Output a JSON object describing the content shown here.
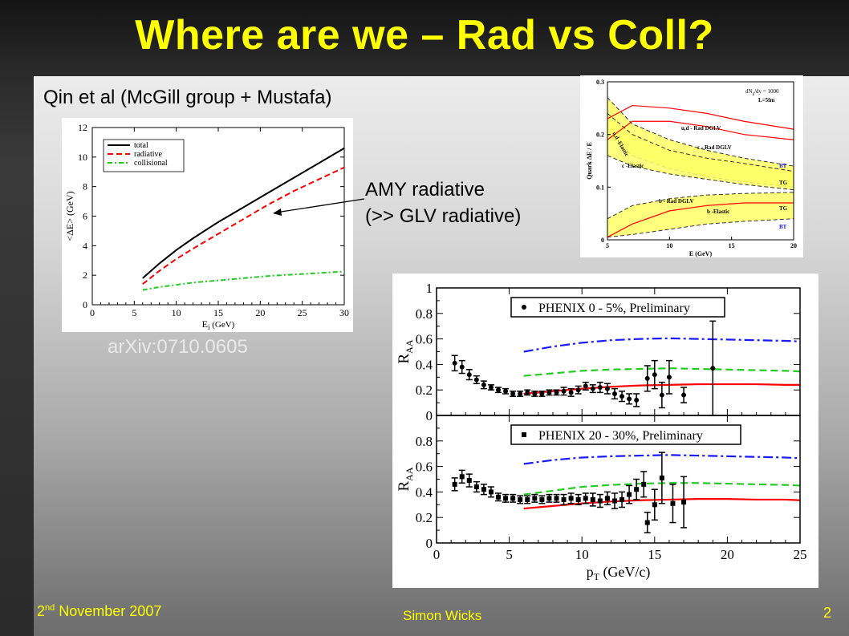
{
  "slide": {
    "title": "Where are we – Rad vs Coll?",
    "subtitle": "Qin et al (McGill group + Mustafa)",
    "reference": "arXiv:0710.0605",
    "annotation_line1": "AMY radiative",
    "annotation_line2": "(>> GLV radiative)",
    "footer_date": "2",
    "footer_date_sup": "nd",
    "footer_date_rest": " November 2007",
    "footer_author": "Simon Wicks",
    "page_number": "2"
  },
  "colors": {
    "title": "#ffff00",
    "footer": "#ffff00",
    "total": "#000000",
    "radiative": "#ff0000",
    "collisional": "#22cc22",
    "blue_curve": "#1a1aff",
    "band_fill": "#ffff66"
  },
  "chart_data": [
    {
      "type": "line",
      "xlabel": "E",
      "xlabel_sub": "i",
      "xlabel_unit": " (GeV)",
      "ylabel": "<ΔE> (GeV)",
      "xlim": [
        0,
        30
      ],
      "ylim": [
        0,
        12
      ],
      "xticks": [
        "0",
        "5",
        "10",
        "15",
        "20",
        "25",
        "30"
      ],
      "yticks": [
        "0",
        "2",
        "4",
        "6",
        "8",
        "10",
        "12"
      ],
      "legend": [
        "total",
        "radiative",
        "collisional"
      ],
      "series": [
        {
          "name": "total",
          "x": [
            6,
            8,
            10,
            12,
            15,
            18,
            21,
            24,
            27,
            30
          ],
          "y": [
            1.8,
            2.8,
            3.7,
            4.5,
            5.6,
            6.6,
            7.6,
            8.6,
            9.6,
            10.6
          ]
        },
        {
          "name": "radiative",
          "x": [
            6,
            8,
            10,
            12,
            15,
            18,
            21,
            24,
            27,
            30
          ],
          "y": [
            1.4,
            2.3,
            3.1,
            3.8,
            4.8,
            5.8,
            6.8,
            7.7,
            8.5,
            9.3
          ]
        },
        {
          "name": "collisional",
          "x": [
            6,
            8,
            10,
            12,
            15,
            18,
            21,
            24,
            27,
            30
          ],
          "y": [
            1.0,
            1.2,
            1.35,
            1.5,
            1.65,
            1.8,
            1.95,
            2.05,
            2.15,
            2.25
          ]
        }
      ]
    },
    {
      "type": "area",
      "ylabel": "Quark ΔE / E",
      "xlabel": "E (GeV)",
      "xlim": [
        5,
        20
      ],
      "ylim": [
        0,
        0.3
      ],
      "xticks": [
        "5",
        "10",
        "15",
        "20"
      ],
      "yticks": [
        "0",
        "0.1",
        "0.2",
        "0.3"
      ],
      "annotations": [
        "dN",
        "g",
        "/dy = 1000",
        "L=5fm",
        "u,d - Rad DGLV",
        "c - Rad DGLV",
        "u,d -Elastic",
        "c -Elastic",
        "b - Rad DGLV",
        "b -Elastic",
        "BT",
        "TG",
        "TG",
        "BT"
      ],
      "series": [
        {
          "name": "u,d - Rad DGLV",
          "x": [
            5,
            7,
            10,
            13,
            16,
            20
          ],
          "y": [
            0.23,
            0.255,
            0.25,
            0.24,
            0.225,
            0.21
          ]
        },
        {
          "name": "c - Rad DGLV",
          "x": [
            5,
            7,
            10,
            13,
            16,
            20
          ],
          "y": [
            0.19,
            0.225,
            0.225,
            0.215,
            0.2,
            0.19
          ]
        },
        {
          "name": "u,d band upper",
          "x": [
            5,
            7,
            10,
            13,
            16,
            20
          ],
          "y": [
            0.27,
            0.22,
            0.19,
            0.17,
            0.155,
            0.14
          ]
        },
        {
          "name": "u,d band lower",
          "x": [
            5,
            7,
            10,
            13,
            16,
            20
          ],
          "y": [
            0.2,
            0.16,
            0.135,
            0.12,
            0.11,
            0.1
          ]
        },
        {
          "name": "c band upper",
          "x": [
            5,
            7,
            10,
            13,
            16,
            20
          ],
          "y": [
            0.24,
            0.2,
            0.17,
            0.155,
            0.145,
            0.13
          ]
        },
        {
          "name": "c band lower",
          "x": [
            5,
            7,
            10,
            13,
            16,
            20
          ],
          "y": [
            0.16,
            0.14,
            0.125,
            0.115,
            0.105,
            0.095
          ]
        },
        {
          "name": "b - Rad DGLV",
          "x": [
            5,
            7,
            10,
            13,
            16,
            20
          ],
          "y": [
            0.005,
            0.03,
            0.055,
            0.065,
            0.07,
            0.07
          ]
        },
        {
          "name": "b band upper",
          "x": [
            5,
            7,
            10,
            13,
            16,
            20
          ],
          "y": [
            0.04,
            0.065,
            0.078,
            0.085,
            0.088,
            0.09
          ]
        },
        {
          "name": "b band lower",
          "x": [
            5,
            7,
            10,
            13,
            16,
            20
          ],
          "y": [
            0.005,
            0.01,
            0.02,
            0.03,
            0.035,
            0.04
          ]
        }
      ]
    },
    {
      "type": "scatter",
      "xlabel": "p",
      "xlabel_sub": "T",
      "xlabel_unit": " (GeV/c)",
      "ylabel": "R",
      "ylabel_sub": "AA",
      "xlim": [
        0,
        25
      ],
      "ylim": [
        0,
        1
      ],
      "xticks": [
        "0",
        "5",
        "10",
        "15",
        "20",
        "25"
      ],
      "top_yticks": [
        "0",
        "0.2",
        "0.4",
        "0.6",
        "0.8",
        "1"
      ],
      "bottom_yticks": [
        "0",
        "0.2",
        "0.4",
        "0.6",
        "0.8"
      ],
      "top_legend": "PHENIX 0 - 5%, Preliminary",
      "bottom_legend": "PHENIX 20 - 30%, Preliminary",
      "top_points": [
        {
          "x": 1.25,
          "y": 0.41,
          "e": 0.06
        },
        {
          "x": 1.75,
          "y": 0.38,
          "e": 0.05
        },
        {
          "x": 2.25,
          "y": 0.32,
          "e": 0.04
        },
        {
          "x": 2.75,
          "y": 0.28,
          "e": 0.03
        },
        {
          "x": 3.25,
          "y": 0.24,
          "e": 0.03
        },
        {
          "x": 3.75,
          "y": 0.22,
          "e": 0.02
        },
        {
          "x": 4.25,
          "y": 0.2,
          "e": 0.02
        },
        {
          "x": 4.75,
          "y": 0.19,
          "e": 0.02
        },
        {
          "x": 5.25,
          "y": 0.17,
          "e": 0.02
        },
        {
          "x": 5.75,
          "y": 0.17,
          "e": 0.02
        },
        {
          "x": 6.25,
          "y": 0.18,
          "e": 0.02
        },
        {
          "x": 6.75,
          "y": 0.17,
          "e": 0.02
        },
        {
          "x": 7.25,
          "y": 0.17,
          "e": 0.02
        },
        {
          "x": 7.75,
          "y": 0.18,
          "e": 0.02
        },
        {
          "x": 8.25,
          "y": 0.18,
          "e": 0.02
        },
        {
          "x": 8.75,
          "y": 0.19,
          "e": 0.03
        },
        {
          "x": 9.25,
          "y": 0.18,
          "e": 0.03
        },
        {
          "x": 9.75,
          "y": 0.2,
          "e": 0.03
        },
        {
          "x": 10.25,
          "y": 0.23,
          "e": 0.03
        },
        {
          "x": 10.75,
          "y": 0.21,
          "e": 0.03
        },
        {
          "x": 11.25,
          "y": 0.22,
          "e": 0.04
        },
        {
          "x": 11.75,
          "y": 0.21,
          "e": 0.04
        },
        {
          "x": 12.25,
          "y": 0.17,
          "e": 0.04
        },
        {
          "x": 12.75,
          "y": 0.15,
          "e": 0.04
        },
        {
          "x": 13.25,
          "y": 0.13,
          "e": 0.04
        },
        {
          "x": 13.75,
          "y": 0.12,
          "e": 0.05
        },
        {
          "x": 14.5,
          "y": 0.29,
          "e": 0.1
        },
        {
          "x": 15.0,
          "y": 0.32,
          "e": 0.11
        },
        {
          "x": 15.5,
          "y": 0.16,
          "e": 0.1
        },
        {
          "x": 16.0,
          "y": 0.3,
          "e": 0.13
        },
        {
          "x": 17.0,
          "y": 0.16,
          "e": 0.06
        },
        {
          "x": 19.0,
          "y": 0.37,
          "e": 0.37
        }
      ],
      "bottom_points": [
        {
          "x": 1.25,
          "y": 0.46,
          "e": 0.05
        },
        {
          "x": 1.75,
          "y": 0.52,
          "e": 0.05
        },
        {
          "x": 2.25,
          "y": 0.49,
          "e": 0.05
        },
        {
          "x": 2.75,
          "y": 0.44,
          "e": 0.04
        },
        {
          "x": 3.25,
          "y": 0.42,
          "e": 0.04
        },
        {
          "x": 3.75,
          "y": 0.4,
          "e": 0.04
        },
        {
          "x": 4.25,
          "y": 0.36,
          "e": 0.03
        },
        {
          "x": 4.75,
          "y": 0.35,
          "e": 0.03
        },
        {
          "x": 5.25,
          "y": 0.35,
          "e": 0.03
        },
        {
          "x": 5.75,
          "y": 0.34,
          "e": 0.03
        },
        {
          "x": 6.25,
          "y": 0.34,
          "e": 0.03
        },
        {
          "x": 6.75,
          "y": 0.35,
          "e": 0.03
        },
        {
          "x": 7.25,
          "y": 0.34,
          "e": 0.03
        },
        {
          "x": 7.75,
          "y": 0.35,
          "e": 0.03
        },
        {
          "x": 8.25,
          "y": 0.35,
          "e": 0.03
        },
        {
          "x": 8.75,
          "y": 0.34,
          "e": 0.04
        },
        {
          "x": 9.25,
          "y": 0.35,
          "e": 0.04
        },
        {
          "x": 9.75,
          "y": 0.34,
          "e": 0.04
        },
        {
          "x": 10.25,
          "y": 0.35,
          "e": 0.04
        },
        {
          "x": 10.75,
          "y": 0.34,
          "e": 0.05
        },
        {
          "x": 11.25,
          "y": 0.33,
          "e": 0.05
        },
        {
          "x": 11.75,
          "y": 0.35,
          "e": 0.05
        },
        {
          "x": 12.25,
          "y": 0.33,
          "e": 0.06
        },
        {
          "x": 12.75,
          "y": 0.34,
          "e": 0.06
        },
        {
          "x": 13.25,
          "y": 0.38,
          "e": 0.07
        },
        {
          "x": 13.75,
          "y": 0.42,
          "e": 0.08
        },
        {
          "x": 14.25,
          "y": 0.46,
          "e": 0.1
        },
        {
          "x": 14.5,
          "y": 0.16,
          "e": 0.08
        },
        {
          "x": 15.0,
          "y": 0.3,
          "e": 0.12
        },
        {
          "x": 15.5,
          "y": 0.51,
          "e": 0.2
        },
        {
          "x": 16.25,
          "y": 0.31,
          "e": 0.15
        },
        {
          "x": 17.0,
          "y": 0.32,
          "e": 0.2
        }
      ],
      "top_series": [
        {
          "name": "blue",
          "x": [
            6,
            8,
            10,
            12,
            14,
            16,
            18,
            20,
            22,
            24,
            25
          ],
          "y": [
            0.5,
            0.54,
            0.57,
            0.59,
            0.6,
            0.605,
            0.6,
            0.595,
            0.59,
            0.585,
            0.58
          ]
        },
        {
          "name": "green",
          "x": [
            6,
            8,
            10,
            12,
            14,
            16,
            18,
            20,
            22,
            24,
            25
          ],
          "y": [
            0.31,
            0.33,
            0.35,
            0.36,
            0.365,
            0.37,
            0.365,
            0.36,
            0.355,
            0.35,
            0.345
          ]
        },
        {
          "name": "red",
          "x": [
            6,
            8,
            10,
            12,
            14,
            16,
            18,
            20,
            22,
            24,
            25
          ],
          "y": [
            0.17,
            0.19,
            0.21,
            0.225,
            0.235,
            0.24,
            0.245,
            0.245,
            0.245,
            0.24,
            0.24
          ]
        }
      ],
      "bottom_series": [
        {
          "name": "blue",
          "x": [
            6,
            8,
            10,
            12,
            14,
            16,
            18,
            20,
            22,
            24,
            25
          ],
          "y": [
            0.62,
            0.65,
            0.67,
            0.68,
            0.685,
            0.69,
            0.685,
            0.68,
            0.675,
            0.67,
            0.665
          ]
        },
        {
          "name": "green",
          "x": [
            6,
            8,
            10,
            12,
            14,
            16,
            18,
            20,
            22,
            24,
            25
          ],
          "y": [
            0.38,
            0.41,
            0.44,
            0.455,
            0.465,
            0.47,
            0.47,
            0.465,
            0.46,
            0.455,
            0.45
          ]
        },
        {
          "name": "red",
          "x": [
            6,
            8,
            10,
            12,
            14,
            16,
            18,
            20,
            22,
            24,
            25
          ],
          "y": [
            0.27,
            0.29,
            0.31,
            0.325,
            0.335,
            0.34,
            0.345,
            0.345,
            0.34,
            0.34,
            0.335
          ]
        }
      ]
    }
  ]
}
